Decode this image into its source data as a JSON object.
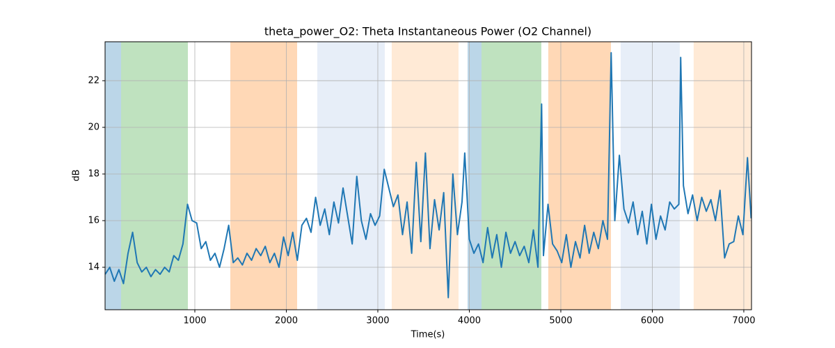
{
  "chart_data": {
    "type": "line",
    "title": "theta_power_O2: Theta Instantaneous Power (O2 Channel)",
    "x_label": "Time(s)",
    "y_label": "dB",
    "xlim": [
      19,
      7084
    ],
    "ylim": [
      12.18,
      23.67
    ],
    "xticks": [
      1000,
      2000,
      3000,
      4000,
      5000,
      6000,
      7000
    ],
    "yticks": [
      14,
      16,
      18,
      20,
      22
    ],
    "grid": true,
    "spans": [
      {
        "x0": 19,
        "x1": 194,
        "color": "#1f77b4"
      },
      {
        "x0": 194,
        "x1": 924,
        "color": "#2ca02c"
      },
      {
        "x0": 1388,
        "x1": 2118,
        "color": "#ff7f0e"
      },
      {
        "x0": 2338,
        "x1": 3076,
        "color": "#aec7e8"
      },
      {
        "x0": 3152,
        "x1": 3882,
        "color": "#ffbb78"
      },
      {
        "x0": 3981,
        "x1": 4133,
        "color": "#1f77b4"
      },
      {
        "x0": 4133,
        "x1": 4787,
        "color": "#2ca02c"
      },
      {
        "x0": 4863,
        "x1": 5548,
        "color": "#ff7f0e"
      },
      {
        "x0": 5654,
        "x1": 6300,
        "color": "#aec7e8"
      },
      {
        "x0": 6452,
        "x1": 7084,
        "color": "#ffbb78"
      }
    ],
    "x": [
      20,
      70,
      120,
      170,
      220,
      270,
      320,
      370,
      420,
      470,
      520,
      570,
      620,
      670,
      720,
      770,
      820,
      870,
      920,
      970,
      1020,
      1070,
      1120,
      1170,
      1220,
      1270,
      1320,
      1370,
      1420,
      1470,
      1520,
      1570,
      1620,
      1670,
      1720,
      1770,
      1820,
      1870,
      1920,
      1970,
      2020,
      2070,
      2120,
      2170,
      2220,
      2270,
      2320,
      2370,
      2420,
      2470,
      2520,
      2570,
      2620,
      2670,
      2720,
      2770,
      2820,
      2870,
      2920,
      2970,
      3020,
      3070,
      3120,
      3170,
      3220,
      3270,
      3320,
      3370,
      3420,
      3470,
      3520,
      3570,
      3620,
      3670,
      3720,
      3770,
      3820,
      3870,
      3920,
      3950,
      4000,
      4050,
      4100,
      4150,
      4200,
      4250,
      4300,
      4350,
      4400,
      4450,
      4500,
      4550,
      4600,
      4650,
      4700,
      4750,
      4790,
      4810,
      4860,
      4910,
      4960,
      5010,
      5060,
      5110,
      5160,
      5210,
      5260,
      5310,
      5360,
      5410,
      5460,
      5510,
      5550,
      5590,
      5640,
      5690,
      5740,
      5790,
      5840,
      5890,
      5940,
      5990,
      6040,
      6090,
      6140,
      6190,
      6240,
      6290,
      6310,
      6340,
      6390,
      6440,
      6490,
      6540,
      6590,
      6640,
      6690,
      6740,
      6790,
      6840,
      6890,
      6940,
      6990,
      7040,
      7080
    ],
    "series": [
      {
        "name": "theta_power_O2",
        "color": "#1f77b4",
        "values": [
          13.7,
          14.0,
          13.4,
          13.9,
          13.3,
          14.6,
          15.5,
          14.2,
          13.8,
          14.0,
          13.6,
          13.9,
          13.7,
          14.0,
          13.8,
          14.5,
          14.3,
          15.0,
          16.7,
          16.0,
          15.9,
          14.8,
          15.1,
          14.3,
          14.6,
          14.0,
          14.8,
          15.8,
          14.2,
          14.4,
          14.1,
          14.6,
          14.3,
          14.8,
          14.5,
          14.9,
          14.2,
          14.6,
          14.0,
          15.3,
          14.5,
          15.5,
          14.3,
          15.8,
          16.1,
          15.5,
          17.0,
          15.8,
          16.5,
          15.4,
          16.8,
          15.9,
          17.4,
          16.2,
          15.0,
          17.9,
          16.0,
          15.2,
          16.3,
          15.8,
          16.2,
          18.2,
          17.4,
          16.6,
          17.1,
          15.4,
          16.8,
          14.6,
          18.5,
          15.1,
          18.9,
          14.8,
          16.9,
          15.6,
          17.2,
          12.7,
          18.0,
          15.4,
          16.8,
          18.9,
          15.2,
          14.6,
          15.0,
          14.2,
          15.7,
          14.4,
          15.4,
          14.0,
          15.5,
          14.6,
          15.1,
          14.5,
          14.9,
          14.2,
          15.6,
          14.0,
          21.0,
          14.5,
          16.7,
          15.0,
          14.7,
          14.2,
          15.4,
          14.0,
          15.1,
          14.4,
          15.8,
          14.6,
          15.5,
          14.8,
          16.0,
          15.2,
          23.2,
          16.0,
          18.8,
          16.5,
          15.9,
          16.8,
          15.4,
          16.4,
          15.0,
          16.7,
          15.2,
          16.2,
          15.6,
          16.8,
          16.5,
          16.7,
          23.0,
          17.5,
          16.3,
          17.1,
          16.0,
          17.0,
          16.4,
          16.9,
          16.0,
          17.3,
          14.4,
          15.0,
          15.1,
          16.2,
          15.4,
          18.7,
          16.1
        ]
      }
    ]
  }
}
